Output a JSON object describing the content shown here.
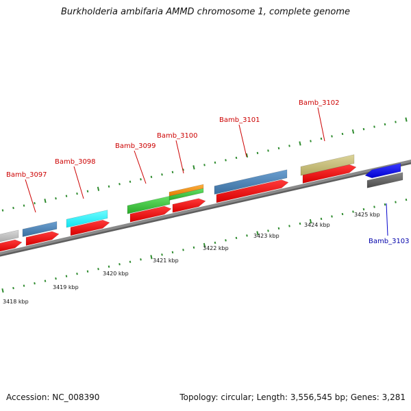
{
  "title": "Burkholderia ambifaria AMMD chromosome 1, complete genome",
  "footer": {
    "accession": "Accession: NC_008390",
    "summary": "Topology: circular; Length: 3,556,545 bp; Genes: 3,281"
  },
  "colors": {
    "backbone": "#8a8a8a",
    "dots": "#2e8b2e",
    "forward_gene": "#ee1111",
    "label_red": "#cc0000",
    "label_blue": "#0000aa",
    "leader_red": "#cc0000",
    "leader_blue": "#0000cc"
  },
  "scale": {
    "ticks": [
      {
        "label": "3418 kbp"
      },
      {
        "label": "3419 kbp"
      },
      {
        "label": "3420 kbp"
      },
      {
        "label": "3421 kbp"
      },
      {
        "label": "3422 kbp"
      },
      {
        "label": "3423 kbp"
      },
      {
        "label": "3424 kbp"
      },
      {
        "label": "3425 kbp"
      }
    ]
  },
  "genes": [
    {
      "name": "Bamb_3097",
      "color": "#cc0000"
    },
    {
      "name": "Bamb_3098",
      "color": "#cc0000"
    },
    {
      "name": "Bamb_3099",
      "color": "#cc0000"
    },
    {
      "name": "Bamb_3100",
      "color": "#cc0000"
    },
    {
      "name": "Bamb_3101",
      "color": "#cc0000"
    },
    {
      "name": "Bamb_3102",
      "color": "#cc0000"
    },
    {
      "name": "Bamb_3103",
      "color": "#0000aa"
    }
  ]
}
